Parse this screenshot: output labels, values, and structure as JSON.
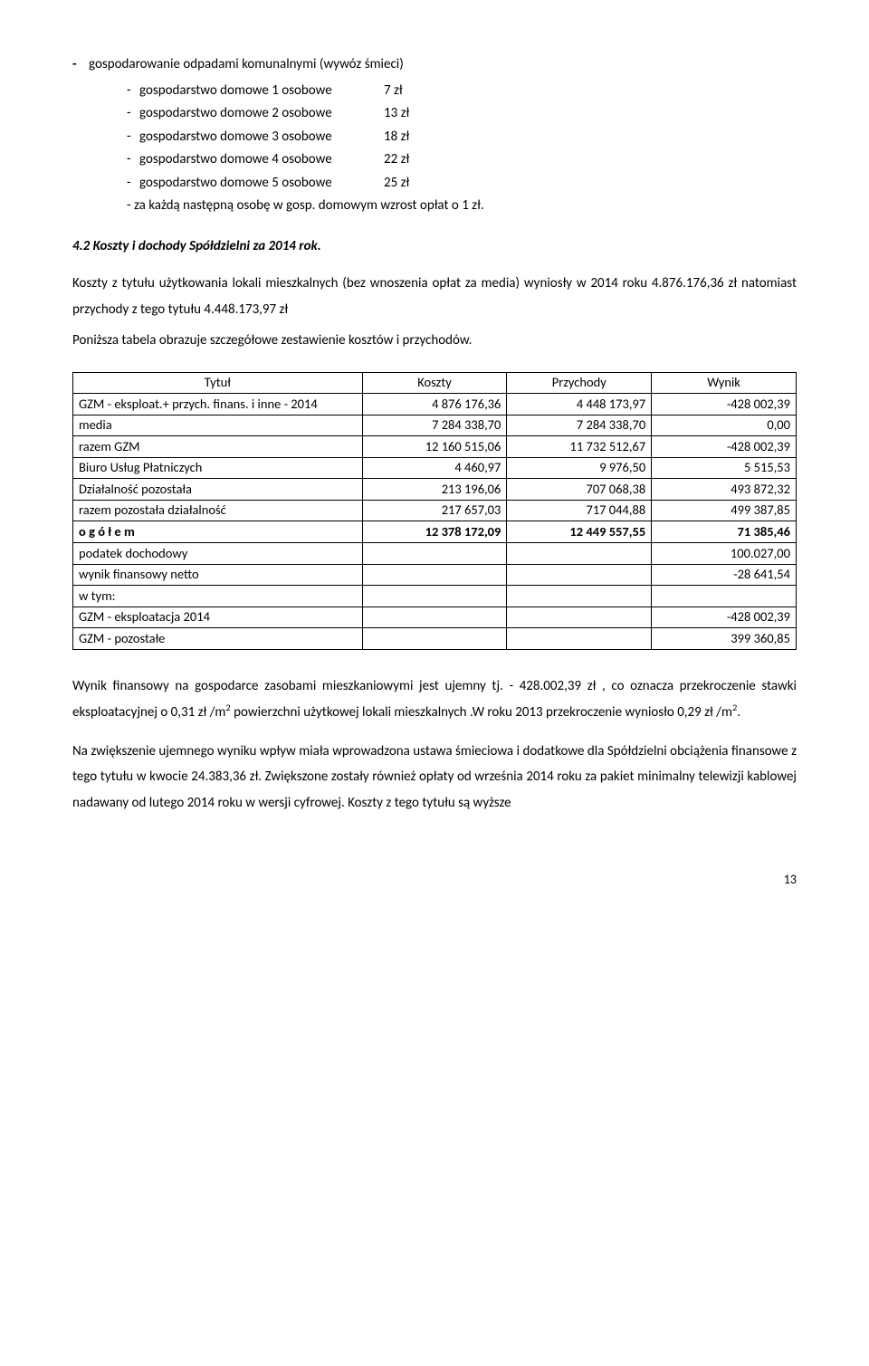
{
  "bullet_title": "gospodarowanie odpadami komunalnymi (wywóz śmieci)",
  "subitems": [
    {
      "label": "gospodarstwo domowe 1 osobowe",
      "value": "7 zł"
    },
    {
      "label": "gospodarstwo domowe 2 osobowe",
      "value": "13 zł"
    },
    {
      "label": "gospodarstwo domowe 3 osobowe",
      "value": "18 zł"
    },
    {
      "label": "gospodarstwo domowe 4 osobowe",
      "value": "22 zł"
    },
    {
      "label": "gospodarstwo domowe 5 osobowe",
      "value": "25 zł"
    }
  ],
  "sub_note": "-  za  każdą następną osobę w gosp.  domowym  wzrost opłat o 1 zł.",
  "heading": "4.2  Koszty i dochody Spółdzielni za 2014 rok.",
  "para1a": "Koszty z tytułu użytkowania lokali mieszkalnych (bez wnoszenia opłat za media) wyniosły w 2014 roku  4.876.176,36 zł  natomiast  przychody z tego tytułu  4.448.173,97 zł",
  "para1b": "Poniższa tabela obrazuje szczegółowe zestawienie kosztów i przychodów.",
  "table": {
    "columns": [
      "Tytuł",
      "Koszty",
      "Przychody",
      "Wynik"
    ],
    "col_widths": [
      "40%",
      "20%",
      "20%",
      "20%"
    ],
    "rows": [
      {
        "cells": [
          "GZM - eksploat.+ przych. finans. i inne - 2014",
          "4 876 176,36",
          "4 448 173,97",
          "-428 002,39"
        ]
      },
      {
        "cells": [
          "media",
          "7 284 338,70",
          "7 284 338,70",
          "0,00"
        ]
      },
      {
        "cells": [
          "razem GZM",
          "12 160 515,06",
          "11 732 512,67",
          "-428 002,39"
        ]
      },
      {
        "cells": [
          "Biuro Usług Płatniczych",
          "4 460,97",
          "9 976,50",
          "5 515,53"
        ]
      },
      {
        "cells": [
          "Działalność pozostała",
          "213 196,06",
          "707 068,38",
          "493 872,32"
        ]
      },
      {
        "cells": [
          "razem pozostała działalność",
          "217 657,03",
          "717 044,88",
          "499 387,85"
        ]
      },
      {
        "cells": [
          "o g ó ł e m",
          "12 378 172,09",
          "12 449 557,55",
          "71 385,46"
        ],
        "bold": true
      },
      {
        "cells": [
          "podatek dochodowy",
          "",
          "",
          "100.027,00"
        ]
      },
      {
        "cells": [
          "wynik finansowy netto",
          "",
          "",
          "-28 641,54"
        ]
      },
      {
        "cells": [
          "w tym:",
          "",
          "",
          ""
        ]
      },
      {
        "cells": [
          "GZM - eksploatacja 2014",
          "",
          "",
          "-428 002,39"
        ]
      },
      {
        "cells": [
          "GZM - pozostałe",
          "",
          "",
          "399 360,85"
        ]
      }
    ]
  },
  "para2_parts": [
    "Wynik finansowy na gospodarce zasobami mieszkaniowymi jest ujemny tj. - 428.002,39 zł , co oznacza przekroczenie stawki eksploatacyjnej o 0,31 zł /m",
    " powierzchni użytkowej lokali mieszkalnych .W roku 2013 przekroczenie wyniosło 0,29 zł /m",
    "."
  ],
  "sup1": "2",
  "sup2": "2",
  "para3": "Na zwiększenie ujemnego wyniku wpływ miała  wprowadzona ustawa śmieciowa i dodatkowe dla Spółdzielni obciążenia finansowe z tego tytułu w kwocie 24.383,36 zł. Zwiększone zostały również  opłaty  od września 2014 roku za pakiet minimalny telewizji kablowej nadawany   od lutego 2014 roku  w wersji cyfrowej. Koszty z tego tytułu są wyższe",
  "page_number": "13"
}
